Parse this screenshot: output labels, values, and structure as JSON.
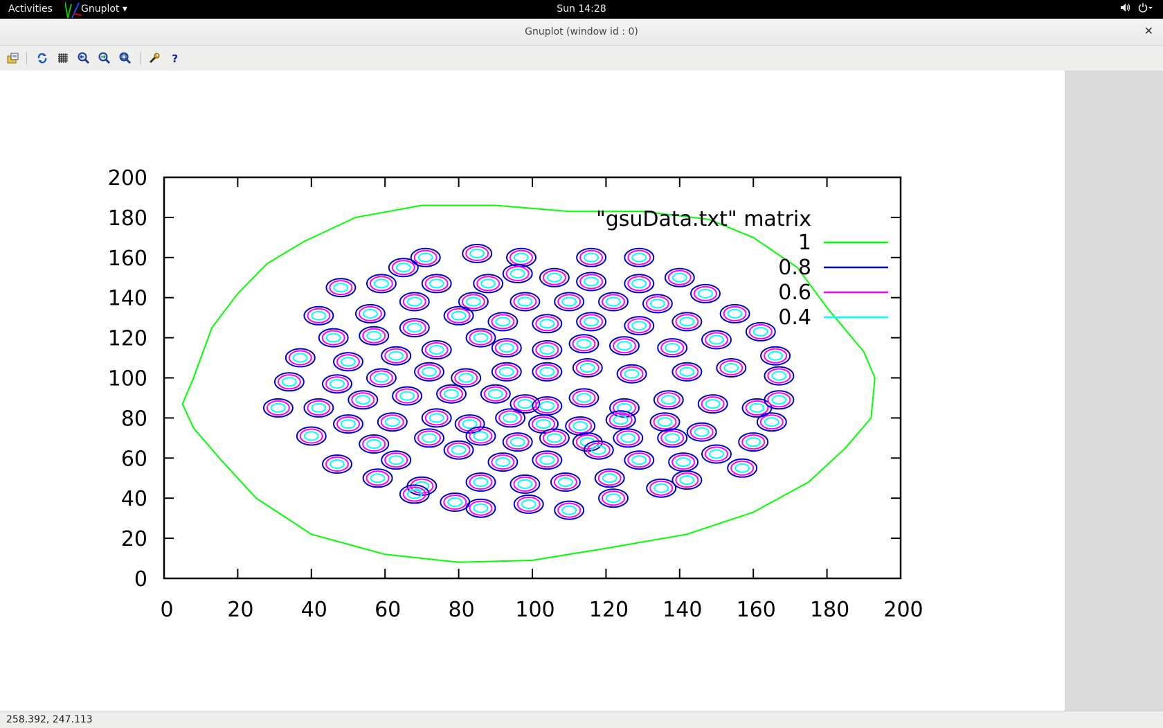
{
  "topbar": {
    "activities": "Activities",
    "app_name": "Gnuplot ▾",
    "clock": "Sun 14:28"
  },
  "window": {
    "title": "Gnuplot (window id : 0)"
  },
  "toolbar": {
    "icons": [
      "export-icon",
      "replot-icon",
      "grid-icon",
      "zoom-previous-icon",
      "zoom-next-icon",
      "unzoom-icon",
      "settings-icon",
      "help-icon"
    ]
  },
  "chart_data": {
    "type": "contour",
    "key_title": "\"gsuData.txt\" matrix",
    "xlim": [
      0,
      200
    ],
    "ylim": [
      0,
      200
    ],
    "x_ticks": [
      "0",
      "20",
      "40",
      "60",
      "80",
      "100",
      "120",
      "140",
      "160",
      "180",
      "200"
    ],
    "y_ticks": [
      "0",
      "20",
      "40",
      "60",
      "80",
      "100",
      "120",
      "140",
      "160",
      "180",
      "200"
    ],
    "levels": [
      {
        "label": "1",
        "color": "#00ff00"
      },
      {
        "label": "0.8",
        "color": "#0000cc"
      },
      {
        "label": "0.6",
        "color": "#ff00ff"
      },
      {
        "label": "0.4",
        "color": "#00ffff"
      }
    ],
    "outer_contour": [
      [
        5,
        87
      ],
      [
        8,
        100
      ],
      [
        13,
        125
      ],
      [
        20,
        142
      ],
      [
        28,
        157
      ],
      [
        38,
        168
      ],
      [
        52,
        180
      ],
      [
        70,
        186
      ],
      [
        90,
        186
      ],
      [
        110,
        183
      ],
      [
        130,
        183
      ],
      [
        148,
        179
      ],
      [
        160,
        170
      ],
      [
        172,
        155
      ],
      [
        180,
        135
      ],
      [
        190,
        113
      ],
      [
        193,
        100
      ],
      [
        192,
        80
      ],
      [
        185,
        65
      ],
      [
        175,
        48
      ],
      [
        160,
        33
      ],
      [
        142,
        22
      ],
      [
        120,
        15
      ],
      [
        100,
        9
      ],
      [
        80,
        8
      ],
      [
        60,
        12
      ],
      [
        40,
        22
      ],
      [
        25,
        40
      ],
      [
        15,
        60
      ],
      [
        8,
        75
      ]
    ],
    "peaks": [
      [
        71,
        160
      ],
      [
        65,
        155
      ],
      [
        85,
        162
      ],
      [
        97,
        160
      ],
      [
        59,
        147
      ],
      [
        48,
        145
      ],
      [
        74,
        147
      ],
      [
        88,
        147
      ],
      [
        96,
        152
      ],
      [
        106,
        150
      ],
      [
        116,
        160
      ],
      [
        116,
        148
      ],
      [
        129,
        160
      ],
      [
        129,
        147
      ],
      [
        140,
        150
      ],
      [
        42,
        131
      ],
      [
        56,
        132
      ],
      [
        68,
        138
      ],
      [
        84,
        138
      ],
      [
        98,
        138
      ],
      [
        110,
        138
      ],
      [
        122,
        138
      ],
      [
        134,
        137
      ],
      [
        147,
        142
      ],
      [
        155,
        132
      ],
      [
        46,
        120
      ],
      [
        57,
        121
      ],
      [
        68,
        125
      ],
      [
        80,
        131
      ],
      [
        92,
        128
      ],
      [
        104,
        127
      ],
      [
        116,
        128
      ],
      [
        129,
        126
      ],
      [
        142,
        128
      ],
      [
        162,
        123
      ],
      [
        37,
        110
      ],
      [
        50,
        108
      ],
      [
        63,
        111
      ],
      [
        74,
        114
      ],
      [
        86,
        120
      ],
      [
        93,
        115
      ],
      [
        104,
        114
      ],
      [
        114,
        117
      ],
      [
        125,
        116
      ],
      [
        138,
        115
      ],
      [
        150,
        119
      ],
      [
        166,
        111
      ],
      [
        34,
        98
      ],
      [
        47,
        97
      ],
      [
        59,
        100
      ],
      [
        72,
        103
      ],
      [
        82,
        100
      ],
      [
        93,
        103
      ],
      [
        104,
        103
      ],
      [
        115,
        105
      ],
      [
        127,
        102
      ],
      [
        142,
        103
      ],
      [
        154,
        105
      ],
      [
        167,
        101
      ],
      [
        31,
        85
      ],
      [
        42,
        85
      ],
      [
        54,
        89
      ],
      [
        66,
        91
      ],
      [
        78,
        92
      ],
      [
        90,
        92
      ],
      [
        98,
        87
      ],
      [
        104,
        86
      ],
      [
        114,
        90
      ],
      [
        125,
        85
      ],
      [
        137,
        89
      ],
      [
        149,
        87
      ],
      [
        161,
        85
      ],
      [
        167,
        89
      ],
      [
        40,
        71
      ],
      [
        50,
        77
      ],
      [
        62,
        78
      ],
      [
        74,
        80
      ],
      [
        83,
        77
      ],
      [
        94,
        80
      ],
      [
        103,
        77
      ],
      [
        113,
        76
      ],
      [
        124,
        79
      ],
      [
        136,
        78
      ],
      [
        146,
        73
      ],
      [
        165,
        78
      ],
      [
        57,
        67
      ],
      [
        72,
        70
      ],
      [
        86,
        71
      ],
      [
        96,
        68
      ],
      [
        106,
        70
      ],
      [
        115,
        68
      ],
      [
        126,
        70
      ],
      [
        138,
        70
      ],
      [
        150,
        62
      ],
      [
        157,
        55
      ],
      [
        160,
        68
      ],
      [
        47,
        57
      ],
      [
        63,
        59
      ],
      [
        80,
        64
      ],
      [
        92,
        58
      ],
      [
        104,
        59
      ],
      [
        118,
        64
      ],
      [
        129,
        59
      ],
      [
        141,
        58
      ],
      [
        58,
        50
      ],
      [
        70,
        46
      ],
      [
        86,
        48
      ],
      [
        98,
        47
      ],
      [
        109,
        48
      ],
      [
        121,
        50
      ],
      [
        135,
        45
      ],
      [
        142,
        49
      ],
      [
        68,
        42
      ],
      [
        79,
        38
      ],
      [
        86,
        35
      ],
      [
        99,
        37
      ],
      [
        110,
        34
      ],
      [
        122,
        40
      ]
    ]
  },
  "status": {
    "coords": "258.392,  247.113"
  }
}
